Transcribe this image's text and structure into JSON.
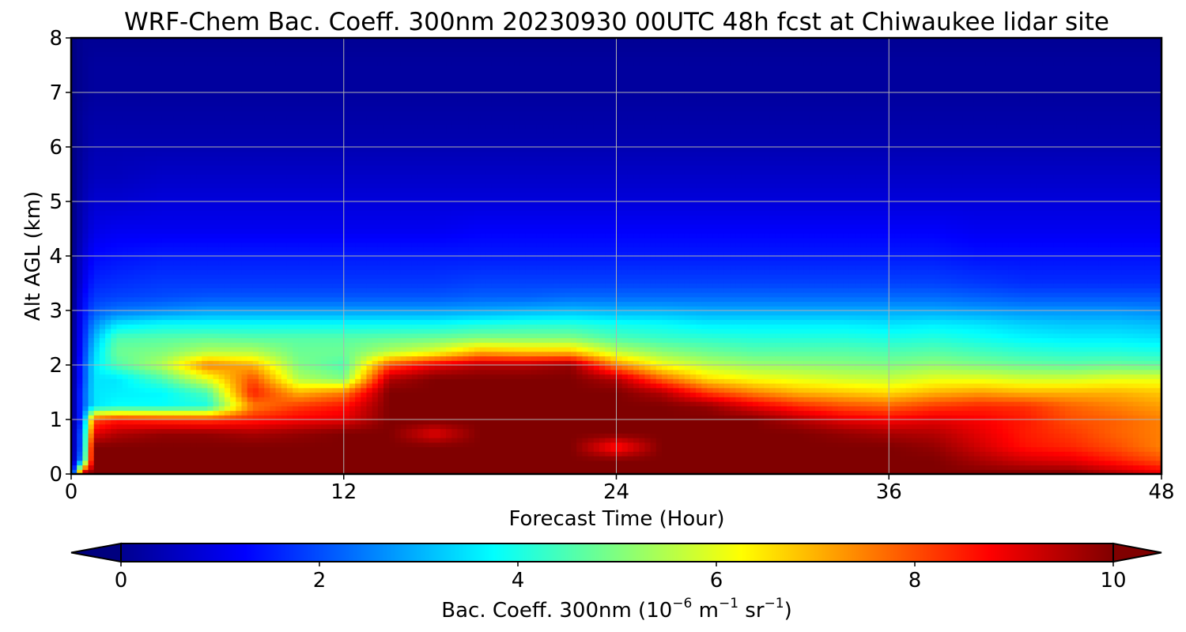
{
  "chart_data": {
    "type": "heatmap",
    "title": "WRF-Chem Bac. Coeff. 300nm  20230930 00UTC 48h fcst at Chiwaukee lidar site",
    "xlabel": "Forecast Time (Hour)",
    "ylabel": "Alt AGL (km)",
    "xlim": [
      0,
      48
    ],
    "ylim": [
      0,
      8
    ],
    "xticks": [
      "0",
      "12",
      "24",
      "36",
      "48"
    ],
    "yticks": [
      "0",
      "1",
      "2",
      "3",
      "4",
      "5",
      "6",
      "7",
      "8"
    ],
    "grid": true,
    "colormap": "jet",
    "colorbar": {
      "orientation": "horizontal",
      "placement": "bottom",
      "extend": "both",
      "range": [
        0,
        10
      ],
      "ticks": [
        "0",
        "2",
        "4",
        "6",
        "8",
        "10"
      ],
      "label": "Bac. Coeff. 300nm  (10",
      "label_exp1": "−6",
      "label_mid": " m",
      "label_exp2": "−1",
      "label_mid2": " sr",
      "label_exp3": "−1",
      "label_end": ")"
    },
    "grid_x_hours": [
      0,
      0.5,
      1,
      2,
      4,
      6,
      8,
      10,
      12,
      14,
      16,
      18,
      20,
      22,
      24,
      26,
      28,
      30,
      32,
      34,
      36,
      38,
      40,
      42,
      44,
      46,
      48
    ],
    "grid_z_km": [
      0,
      0.25,
      0.5,
      0.75,
      1,
      1.25,
      1.5,
      1.75,
      2,
      2.25,
      2.5,
      2.75,
      3,
      3.25,
      3.5,
      4,
      4.5,
      5,
      5.5,
      6,
      6.5,
      7,
      7.5,
      8
    ],
    "values": [
      [
        0.0,
        0.0,
        0.0,
        0.0,
        0.0,
        0.0,
        0.0,
        0.0,
        0.0,
        0.0,
        0.0,
        0.0,
        0.0,
        0.0,
        0.0,
        0.0,
        0.0,
        0.0,
        0.0,
        0.0,
        0.0,
        0.0,
        0.0,
        0.0
      ],
      [
        10.0,
        3.0,
        2.5,
        2.5,
        2.0,
        2.0,
        2.0,
        1.8,
        1.8,
        1.6,
        1.5,
        1.4,
        1.3,
        1.2,
        1.0,
        0.8,
        0.6,
        0.5,
        0.4,
        0.3,
        0.3,
        0.2,
        0.2,
        0.2
      ],
      [
        10.0,
        10.0,
        10.0,
        9.0,
        8.0,
        3.5,
        3.5,
        3.5,
        3.5,
        3.3,
        3.0,
        2.6,
        2.1,
        1.8,
        1.6,
        1.3,
        1.0,
        0.8,
        0.6,
        0.5,
        0.4,
        0.3,
        0.3,
        0.2
      ],
      [
        10.0,
        10.0,
        10.0,
        9.5,
        8.5,
        3.8,
        3.6,
        3.5,
        4.5,
        4.8,
        4.5,
        3.5,
        2.4,
        1.9,
        1.7,
        1.4,
        1.1,
        0.8,
        0.6,
        0.5,
        0.4,
        0.3,
        0.3,
        0.2
      ],
      [
        10.0,
        10.0,
        10.0,
        9.8,
        8.3,
        3.8,
        3.7,
        4.5,
        5.5,
        5.0,
        4.6,
        3.8,
        2.6,
        2.0,
        1.8,
        1.5,
        1.1,
        0.9,
        0.7,
        0.5,
        0.4,
        0.3,
        0.3,
        0.2
      ],
      [
        10.0,
        10.0,
        10.0,
        9.8,
        8.2,
        4.0,
        4.5,
        6.0,
        7.5,
        5.5,
        4.7,
        3.8,
        2.8,
        2.1,
        1.8,
        1.5,
        1.1,
        0.9,
        0.7,
        0.5,
        0.4,
        0.3,
        0.3,
        0.2
      ],
      [
        10.0,
        10.0,
        10.0,
        9.6,
        8.5,
        7.5,
        8.5,
        8.0,
        7.0,
        5.5,
        4.6,
        3.8,
        2.8,
        2.1,
        1.8,
        1.5,
        1.1,
        0.9,
        0.7,
        0.5,
        0.4,
        0.3,
        0.3,
        0.2
      ],
      [
        10.0,
        10.0,
        10.0,
        9.8,
        8.8,
        8.2,
        7.0,
        5.5,
        5.0,
        4.8,
        4.6,
        3.8,
        2.8,
        2.1,
        1.8,
        1.5,
        1.1,
        0.9,
        0.7,
        0.5,
        0.4,
        0.3,
        0.3,
        0.2
      ],
      [
        10.0,
        10.0,
        10.0,
        10.0,
        9.0,
        8.6,
        7.5,
        5.0,
        4.5,
        4.8,
        4.6,
        3.8,
        2.8,
        2.1,
        1.8,
        1.5,
        1.1,
        0.9,
        0.7,
        0.5,
        0.4,
        0.3,
        0.3,
        0.2
      ],
      [
        10.0,
        10.0,
        10.0,
        10.0,
        10.0,
        10.0,
        10.0,
        9.5,
        8.0,
        5.5,
        4.7,
        3.8,
        2.8,
        2.1,
        1.8,
        1.5,
        1.1,
        0.9,
        0.7,
        0.5,
        0.4,
        0.3,
        0.3,
        0.2
      ],
      [
        10.0,
        10.0,
        10.0,
        9.0,
        10.0,
        10.0,
        10.0,
        10.0,
        9.0,
        6.0,
        4.8,
        3.8,
        2.8,
        2.1,
        1.8,
        1.5,
        1.1,
        0.9,
        0.7,
        0.5,
        0.4,
        0.3,
        0.3,
        0.2
      ],
      [
        10.0,
        10.0,
        10.0,
        10.0,
        10.0,
        10.0,
        10.0,
        10.0,
        9.5,
        7.0,
        5.0,
        4.0,
        2.9,
        2.2,
        1.9,
        1.5,
        1.2,
        0.9,
        0.7,
        0.5,
        0.4,
        0.3,
        0.3,
        0.2
      ],
      [
        10.0,
        10.0,
        10.0,
        10.0,
        10.0,
        10.0,
        10.0,
        10.0,
        9.5,
        6.8,
        5.0,
        4.1,
        3.0,
        2.2,
        1.9,
        1.5,
        1.2,
        0.9,
        0.7,
        0.5,
        0.4,
        0.3,
        0.3,
        0.2
      ],
      [
        10.0,
        10.0,
        10.0,
        10.0,
        10.0,
        10.0,
        10.0,
        10.0,
        9.8,
        6.8,
        5.0,
        4.1,
        3.1,
        2.3,
        1.9,
        1.5,
        1.2,
        0.9,
        0.7,
        0.5,
        0.4,
        0.3,
        0.3,
        0.2
      ],
      [
        10.0,
        10.0,
        8.5,
        10.0,
        10.0,
        10.0,
        10.0,
        9.5,
        7.5,
        5.6,
        4.5,
        3.9,
        3.0,
        2.3,
        1.9,
        1.5,
        1.2,
        0.9,
        0.7,
        0.5,
        0.4,
        0.3,
        0.3,
        0.2
      ],
      [
        10.0,
        10.0,
        10.0,
        10.0,
        10.0,
        10.0,
        9.5,
        7.8,
        6.2,
        5.1,
        4.3,
        3.8,
        3.0,
        2.3,
        1.9,
        1.5,
        1.2,
        0.9,
        0.7,
        0.5,
        0.4,
        0.3,
        0.3,
        0.2
      ],
      [
        10.0,
        10.0,
        10.0,
        10.0,
        10.0,
        9.8,
        8.2,
        6.6,
        5.6,
        4.8,
        4.2,
        3.6,
        2.9,
        2.3,
        1.9,
        1.5,
        1.2,
        0.9,
        0.7,
        0.5,
        0.4,
        0.3,
        0.3,
        0.2
      ],
      [
        10.0,
        10.0,
        10.0,
        10.0,
        10.0,
        9.0,
        7.5,
        6.2,
        5.3,
        4.6,
        4.1,
        3.6,
        2.9,
        2.3,
        1.9,
        1.5,
        1.2,
        0.9,
        0.7,
        0.5,
        0.4,
        0.3,
        0.3,
        0.2
      ],
      [
        10.0,
        10.0,
        10.0,
        10.0,
        9.5,
        8.4,
        7.0,
        6.0,
        5.2,
        4.6,
        4.1,
        3.6,
        2.9,
        2.3,
        1.9,
        1.5,
        1.2,
        0.9,
        0.7,
        0.5,
        0.4,
        0.3,
        0.3,
        0.2
      ],
      [
        10.0,
        10.0,
        10.0,
        9.8,
        9.0,
        8.0,
        6.8,
        5.8,
        5.1,
        4.6,
        4.1,
        3.6,
        2.9,
        2.3,
        1.9,
        1.5,
        1.2,
        0.9,
        0.7,
        0.5,
        0.4,
        0.3,
        0.3,
        0.2
      ],
      [
        10.0,
        10.0,
        10.0,
        9.6,
        8.8,
        7.8,
        6.6,
        5.7,
        5.0,
        4.5,
        4.0,
        3.5,
        2.9,
        2.3,
        1.9,
        1.5,
        1.2,
        0.9,
        0.7,
        0.5,
        0.4,
        0.3,
        0.3,
        0.2
      ],
      [
        10.0,
        10.0,
        9.8,
        9.5,
        9.0,
        8.2,
        7.0,
        6.0,
        5.2,
        4.6,
        4.1,
        3.6,
        2.9,
        2.3,
        1.9,
        1.5,
        1.2,
        0.9,
        0.7,
        0.5,
        0.4,
        0.3,
        0.3,
        0.2
      ],
      [
        10.0,
        9.6,
        9.2,
        9.0,
        8.8,
        8.4,
        7.2,
        6.0,
        5.0,
        4.4,
        3.9,
        3.5,
        2.8,
        2.2,
        1.8,
        1.4,
        1.1,
        0.9,
        0.7,
        0.5,
        0.4,
        0.3,
        0.3,
        0.2
      ],
      [
        10.0,
        9.2,
        8.6,
        8.5,
        8.5,
        8.3,
        7.0,
        5.8,
        4.8,
        4.2,
        3.7,
        3.3,
        2.7,
        2.1,
        1.7,
        1.4,
        1.1,
        0.9,
        0.7,
        0.5,
        0.4,
        0.3,
        0.3,
        0.2
      ],
      [
        10.0,
        9.0,
        8.4,
        8.2,
        8.0,
        7.8,
        7.0,
        5.8,
        4.7,
        4.1,
        3.6,
        3.2,
        2.7,
        2.1,
        1.7,
        1.4,
        1.1,
        0.9,
        0.7,
        0.5,
        0.4,
        0.3,
        0.3,
        0.2
      ],
      [
        9.5,
        8.5,
        8.0,
        7.8,
        7.8,
        7.5,
        7.0,
        6.0,
        4.8,
        4.1,
        3.6,
        3.2,
        2.7,
        2.1,
        1.7,
        1.4,
        1.1,
        0.9,
        0.7,
        0.5,
        0.4,
        0.3,
        0.3,
        0.2
      ],
      [
        9.0,
        8.0,
        7.5,
        7.5,
        7.5,
        7.2,
        6.8,
        6.0,
        4.7,
        4.0,
        3.5,
        3.1,
        2.6,
        2.1,
        1.7,
        1.4,
        1.1,
        0.9,
        0.7,
        0.5,
        0.4,
        0.3,
        0.3,
        0.2
      ]
    ]
  }
}
